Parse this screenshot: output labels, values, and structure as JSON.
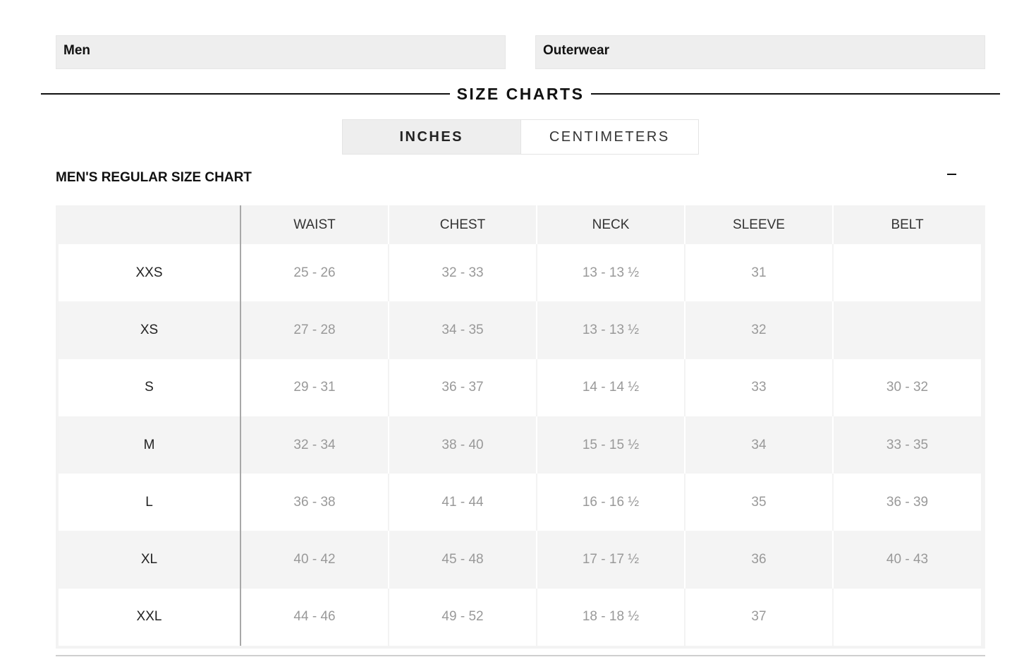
{
  "filters": {
    "gender": "Men",
    "category": "Outerwear"
  },
  "heading": "SIZE CHARTS",
  "units": {
    "inches": "INCHES",
    "centimeters": "CENTIMETERS",
    "selected": "INCHES"
  },
  "chart": {
    "title": "MEN'S REGULAR SIZE CHART",
    "collapse_symbol": "–",
    "columns": [
      "",
      "WAIST",
      "CHEST",
      "NECK",
      "SLEEVE",
      "BELT"
    ],
    "rows": [
      {
        "size": "XXS",
        "waist": "25 - 26",
        "chest": "32 - 33",
        "neck": "13 - 13 ½",
        "sleeve": "31",
        "belt": ""
      },
      {
        "size": "XS",
        "waist": "27 - 28",
        "chest": "34 - 35",
        "neck": "13 - 13 ½",
        "sleeve": "32",
        "belt": ""
      },
      {
        "size": "S",
        "waist": "29 - 31",
        "chest": "36 - 37",
        "neck": "14 - 14 ½",
        "sleeve": "33",
        "belt": "30 - 32"
      },
      {
        "size": "M",
        "waist": "32 - 34",
        "chest": "38 - 40",
        "neck": "15 - 15 ½",
        "sleeve": "34",
        "belt": "33 - 35"
      },
      {
        "size": "L",
        "waist": "36 - 38",
        "chest": "41 - 44",
        "neck": "16 - 16 ½",
        "sleeve": "35",
        "belt": "36 - 39"
      },
      {
        "size": "XL",
        "waist": "40 - 42",
        "chest": "45 - 48",
        "neck": "17 - 17 ½",
        "sleeve": "36",
        "belt": "40 - 43"
      },
      {
        "size": "XXL",
        "waist": "44 - 46",
        "chest": "49 - 52",
        "neck": "18 - 18 ½",
        "sleeve": "37",
        "belt": ""
      }
    ]
  }
}
